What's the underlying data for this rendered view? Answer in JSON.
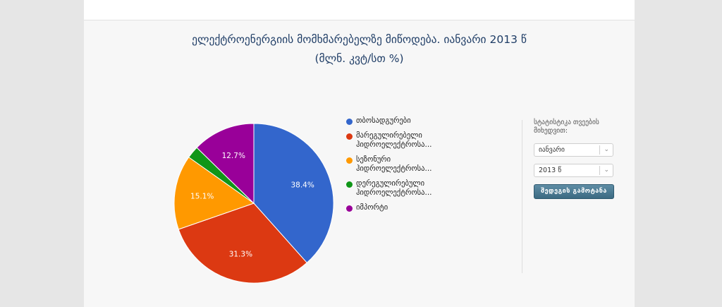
{
  "chart_data": {
    "type": "pie",
    "title": "ელექტროენერგიის მომხმარებელზე მიწოდება. იანვარი 2013 წ",
    "subtitle": "(მლნ. კვტ/სთ %)",
    "slices": [
      {
        "label": "თბოსადგურები",
        "value": 38.4,
        "color": "#3366cc",
        "data_label": "38.4%"
      },
      {
        "label": "მარეგულირებელი\nჰიდროელექტროსა...",
        "value": 31.3,
        "color": "#dc3912",
        "data_label": "31.3%"
      },
      {
        "label": "სეზონური\nჰიდროელექტროსა...",
        "value": 15.1,
        "color": "#ff9900",
        "data_label": "15.1%"
      },
      {
        "label": "დერეგულირებული\nჰიდროელექტროსა...",
        "value": 2.5,
        "color": "#109618",
        "data_label": ""
      },
      {
        "label": "იმპორტი",
        "value": 12.7,
        "color": "#990099",
        "data_label": "12.7%"
      }
    ],
    "legend_position": "right",
    "start_angle": "12 o'clock, clockwise"
  },
  "side_panel": {
    "label": "სტატისტიკა თვეების მიხედვით:",
    "month_select": {
      "value": "იანვარი",
      "arrow": "chevron-down-icon"
    },
    "year_select": {
      "value": "2013 წ",
      "arrow": "chevron-down-icon"
    },
    "submit_label": "შედეგის გამოტანა"
  },
  "colors": {
    "title_text": "#1f3d66",
    "button_bg": "#4a7890",
    "background": "#f7f7f7"
  }
}
